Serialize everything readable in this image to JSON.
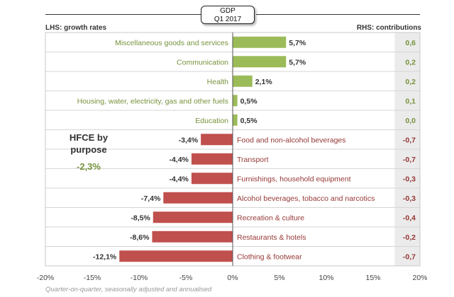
{
  "header": {
    "gdp_line1": "GDP",
    "gdp_line2": "Q1 2017",
    "lhs": "LHS: growth rates",
    "rhs": "RHS: contributions"
  },
  "footnote": "Quarter-on-quarter, seasonally adjusted and annualised",
  "colors": {
    "positive": "#9bbb59",
    "negative": "#c0504d",
    "pos_text": "#76923c",
    "neg_text": "#953735"
  },
  "chart_data": {
    "type": "bar",
    "orientation": "horizontal",
    "title": "GDP Q1 2017",
    "xlabel": "",
    "ylabel": "",
    "xlim": [
      -20,
      20
    ],
    "ticks": [
      -20,
      -15,
      -10,
      -5,
      0,
      5,
      10,
      15,
      20
    ],
    "tick_labels": [
      "-20%",
      "-15%",
      "-10%",
      "-5%",
      "0%",
      "5%",
      "10%",
      "15%",
      "20%"
    ],
    "categories": [
      "Miscellaneous goods and services",
      "Communication",
      "Health",
      "Housing, water, electricity, gas and other fuels",
      "Education",
      "Food and non-alcohol beverages",
      "Transport",
      "Furnishings, household equipment",
      "Alcohol beverages, tobacco and narcotics",
      "Recreation & culture",
      "Restaurants & hotels",
      "Clothing & footwear"
    ],
    "values": [
      5.7,
      5.7,
      2.1,
      0.5,
      0.5,
      -3.4,
      -4.4,
      -4.4,
      -7.4,
      -8.5,
      -8.6,
      -12.1
    ],
    "value_labels": [
      "5,7%",
      "5,7%",
      "2,1%",
      "0,5%",
      "0,5%",
      "-3,4%",
      "-4,4%",
      "-4,4%",
      "-7,4%",
      "-8,5%",
      "-8,6%",
      "-12,1%"
    ],
    "contributions": [
      "0,6",
      "0,2",
      "0,2",
      "0,1",
      "0,0",
      "-0,7",
      "-0,7",
      "-0,3",
      "-0,3",
      "-0,4",
      "-0,2",
      "-0,7"
    ],
    "annotation": {
      "title_line1": "HFCE by",
      "title_line2": "purpose",
      "value": "-2,3%"
    }
  }
}
